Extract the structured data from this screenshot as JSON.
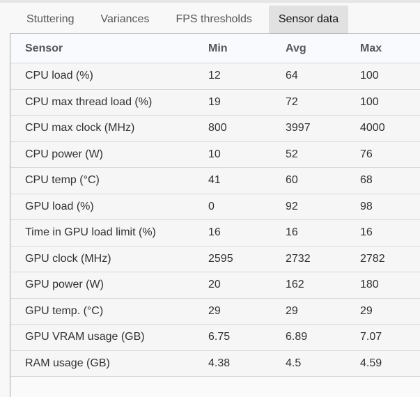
{
  "tabs": {
    "items": [
      {
        "label": "Stuttering",
        "selected": false
      },
      {
        "label": "Variances",
        "selected": false
      },
      {
        "label": "FPS thresholds",
        "selected": false
      },
      {
        "label": "Sensor data",
        "selected": true
      }
    ]
  },
  "table": {
    "columns": [
      "Sensor",
      "Min",
      "Avg",
      "Max"
    ],
    "rows": [
      {
        "sensor": "CPU load (%)",
        "min": "12",
        "avg": "64",
        "max": "100"
      },
      {
        "sensor": "CPU max thread load (%)",
        "min": "19",
        "avg": "72",
        "max": "100"
      },
      {
        "sensor": "CPU max clock (MHz)",
        "min": "800",
        "avg": "3997",
        "max": "4000"
      },
      {
        "sensor": "CPU power (W)",
        "min": "10",
        "avg": "52",
        "max": "76"
      },
      {
        "sensor": "CPU temp (°C)",
        "min": "41",
        "avg": "60",
        "max": "68"
      },
      {
        "sensor": "GPU load (%)",
        "min": "0",
        "avg": "92",
        "max": "98"
      },
      {
        "sensor": "Time in GPU load limit (%)",
        "min": "16",
        "avg": "16",
        "max": "16"
      },
      {
        "sensor": "GPU clock (MHz)",
        "min": "2595",
        "avg": "2732",
        "max": "2782"
      },
      {
        "sensor": "GPU power (W)",
        "min": "20",
        "avg": "162",
        "max": "180"
      },
      {
        "sensor": "GPU temp. (°C)",
        "min": "29",
        "avg": "29",
        "max": "29"
      },
      {
        "sensor": "GPU VRAM usage (GB)",
        "min": "6.75",
        "avg": "6.89",
        "max": "7.07"
      },
      {
        "sensor": "RAM usage (GB)",
        "min": "4.38",
        "avg": "4.5",
        "max": "4.59"
      }
    ]
  },
  "colors": {
    "selected_tab_bg": "#e1e1e1",
    "grid_border": "#a8a8a8"
  }
}
